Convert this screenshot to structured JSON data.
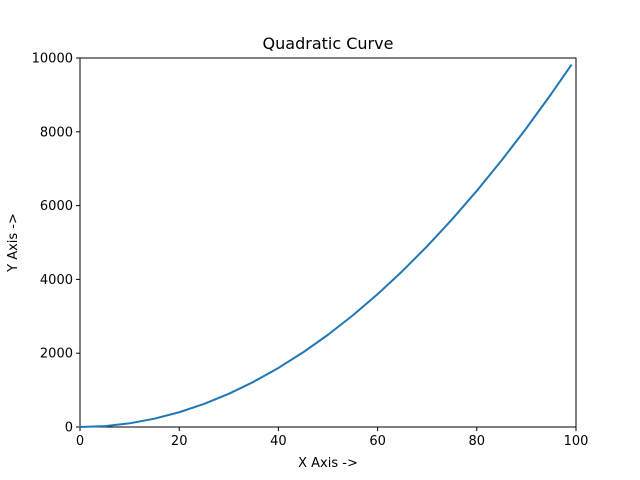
{
  "chart_data": {
    "type": "line",
    "title": "Quadratic Curve",
    "xlabel": "X Axis ->",
    "ylabel": "Y Axis ->",
    "xlim": [
      0,
      100
    ],
    "ylim": [
      0,
      10000
    ],
    "xticks": [
      0,
      20,
      40,
      60,
      80,
      100
    ],
    "yticks": [
      0,
      2000,
      4000,
      6000,
      8000,
      10000
    ],
    "grid": false,
    "series": [
      {
        "color": "#1f77b4",
        "x": [
          0,
          5,
          10,
          15,
          20,
          25,
          30,
          35,
          40,
          45,
          50,
          55,
          60,
          65,
          70,
          75,
          80,
          85,
          90,
          95,
          99
        ],
        "y": [
          0,
          25,
          100,
          225,
          400,
          625,
          900,
          1225,
          1600,
          2025,
          2500,
          3025,
          3600,
          4225,
          4900,
          5625,
          6400,
          7225,
          8100,
          9025,
          9801
        ]
      }
    ]
  }
}
